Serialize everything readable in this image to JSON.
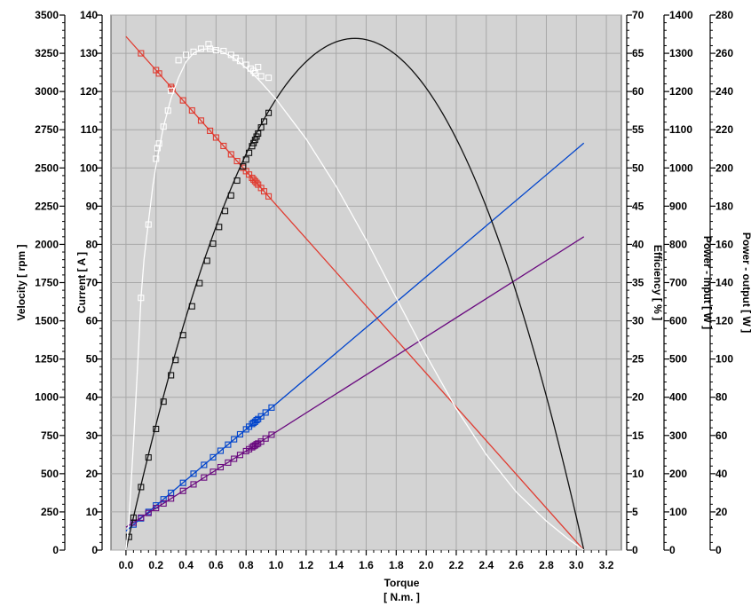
{
  "chart_data": {
    "type": "line",
    "title": "",
    "xlabel": "Torque",
    "xlabel_unit": "[ N.m. ]",
    "xlim": [
      -0.1,
      3.3
    ],
    "x_ticks": [
      "0.0",
      "0.2",
      "0.4",
      "0.6",
      "0.8",
      "1.0",
      "1.2",
      "1.4",
      "1.6",
      "1.8",
      "2.0",
      "2.2",
      "2.4",
      "2.6",
      "2.8",
      "3.0",
      "3.2"
    ],
    "grid": true,
    "plot_background": "#d3d3d3",
    "axes": [
      {
        "id": "velocity",
        "label": "Velocity [ rpm ]",
        "side": "left",
        "range": [
          0,
          3500
        ],
        "ticks": [
          "0",
          "250",
          "500",
          "750",
          "1000",
          "1250",
          "1500",
          "1750",
          "2000",
          "2250",
          "2500",
          "2750",
          "3000",
          "3250",
          "3500"
        ]
      },
      {
        "id": "current",
        "label": "Current [ A ]",
        "side": "left",
        "range": [
          0,
          140
        ],
        "ticks": [
          "0",
          "10",
          "20",
          "30",
          "40",
          "50",
          "60",
          "70",
          "80",
          "90",
          "100",
          "110",
          "120",
          "130",
          "140"
        ]
      },
      {
        "id": "efficiency",
        "label": "Efficiency [ % ]",
        "side": "right",
        "range": [
          0,
          70
        ],
        "ticks": [
          "0",
          "5",
          "10",
          "15",
          "20",
          "25",
          "30",
          "35",
          "40",
          "45",
          "50",
          "55",
          "60",
          "65",
          "70"
        ]
      },
      {
        "id": "power_input",
        "label": "Power - input [ W ]",
        "side": "right",
        "range": [
          0,
          1400
        ],
        "ticks": [
          "0",
          "100",
          "200",
          "300",
          "400",
          "500",
          "600",
          "700",
          "800",
          "900",
          "1000",
          "1100",
          "1200",
          "1300",
          "1400"
        ]
      },
      {
        "id": "power_output",
        "label": "Power - output [ W ]",
        "side": "right",
        "range": [
          0,
          280
        ],
        "ticks": [
          "0",
          "20",
          "40",
          "60",
          "80",
          "100",
          "120",
          "140",
          "160",
          "180",
          "200",
          "220",
          "240",
          "260",
          "280"
        ]
      }
    ],
    "series": [
      {
        "axis": "velocity",
        "color": "#e03c31",
        "model": "line",
        "x0": 0.0,
        "y0": 3360,
        "x1": 3.05,
        "y1": 0,
        "x": [
          0.1,
          0.2,
          0.22,
          0.3,
          0.31,
          0.38,
          0.44,
          0.5,
          0.56,
          0.6,
          0.65,
          0.7,
          0.74,
          0.78,
          0.8,
          0.82,
          0.84,
          0.85,
          0.86,
          0.87,
          0.88,
          0.9,
          0.92,
          0.95
        ],
        "y": [
          3250,
          3140,
          3118,
          3030,
          3018,
          2942,
          2876,
          2810,
          2743,
          2699,
          2644,
          2589,
          2545,
          2501,
          2479,
          2457,
          2435,
          2424,
          2413,
          2402,
          2391,
          2369,
          2347,
          2314
        ]
      },
      {
        "axis": "current",
        "color": "#0044cc",
        "model": "line",
        "x0": 0.0,
        "y0": 5.0,
        "x1": 3.05,
        "y1": 106.5,
        "x": [
          0.05,
          0.1,
          0.15,
          0.2,
          0.25,
          0.3,
          0.38,
          0.45,
          0.52,
          0.58,
          0.63,
          0.68,
          0.72,
          0.76,
          0.8,
          0.82,
          0.84,
          0.85,
          0.86,
          0.87,
          0.88,
          0.9,
          0.93,
          0.97
        ],
        "y": [
          6.7,
          8.3,
          10.0,
          11.7,
          13.3,
          15.0,
          17.6,
          20.0,
          22.3,
          24.3,
          26.0,
          27.6,
          29.0,
          30.3,
          31.6,
          32.3,
          33.0,
          33.3,
          33.6,
          34.0,
          34.3,
          35.0,
          36.0,
          37.3
        ]
      },
      {
        "axis": "power_input",
        "color": "#6a0a7f",
        "model": "line",
        "x0": 0.0,
        "y0": 60,
        "x1": 3.05,
        "y1": 820,
        "x": [
          0.05,
          0.1,
          0.15,
          0.2,
          0.25,
          0.3,
          0.38,
          0.45,
          0.52,
          0.58,
          0.63,
          0.68,
          0.72,
          0.76,
          0.8,
          0.82,
          0.84,
          0.85,
          0.86,
          0.87,
          0.88,
          0.9,
          0.93,
          0.97
        ],
        "y": [
          72,
          85,
          97,
          110,
          122,
          135,
          155,
          172,
          190,
          205,
          217,
          229,
          239,
          249,
          259,
          264,
          269,
          272,
          274,
          277,
          279,
          284,
          292,
          302
        ]
      },
      {
        "axis": "power_output",
        "color": "#111111",
        "model": "parabola",
        "zero_x": 3.05,
        "peak_y": 267.8,
        "x": [
          0.02,
          0.05,
          0.1,
          0.15,
          0.2,
          0.25,
          0.3,
          0.33,
          0.38,
          0.44,
          0.49,
          0.54,
          0.58,
          0.62,
          0.66,
          0.7,
          0.74,
          0.78,
          0.8,
          0.82,
          0.84,
          0.85,
          0.86,
          0.87,
          0.88,
          0.9,
          0.92,
          0.95
        ],
        "y": [
          6.9,
          17.0,
          33.0,
          48.5,
          63.4,
          77.7,
          91.5,
          99.5,
          112.5,
          127.6,
          139.7,
          151.4,
          160.4,
          169.1,
          177.5,
          185.6,
          193.4,
          200.8,
          204.4,
          207.9,
          211.4,
          213.0,
          214.7,
          216.4,
          218.0,
          221.2,
          224.3,
          228.8
        ]
      },
      {
        "axis": "efficiency",
        "color": "#ffffff",
        "model": "curve",
        "curve_x": [
          0.0,
          0.02,
          0.05,
          0.08,
          0.1,
          0.12,
          0.15,
          0.18,
          0.2,
          0.22,
          0.25,
          0.3,
          0.35,
          0.4,
          0.45,
          0.5,
          0.55,
          0.6,
          0.65,
          0.7,
          0.75,
          0.8,
          0.85,
          0.9,
          0.95,
          1.0,
          1.2,
          1.4,
          1.6,
          1.8,
          2.0,
          2.2,
          2.4,
          2.6,
          2.8,
          2.95,
          3.05
        ],
        "curve_y": [
          0.0,
          4.0,
          14.0,
          25.0,
          33.0,
          38.0,
          43.0,
          47.8,
          50.3,
          52.4,
          55.4,
          59.1,
          61.8,
          63.9,
          65.0,
          65.5,
          65.6,
          65.5,
          65.1,
          64.6,
          63.9,
          63.1,
          62.2,
          61.2,
          60.1,
          59.0,
          53.8,
          47.6,
          40.6,
          33.0,
          25.5,
          18.5,
          12.5,
          7.6,
          3.8,
          1.4,
          0.0
        ],
        "x": [
          0.1,
          0.15,
          0.2,
          0.21,
          0.22,
          0.25,
          0.28,
          0.3,
          0.35,
          0.4,
          0.45,
          0.5,
          0.55,
          0.56,
          0.6,
          0.65,
          0.7,
          0.73,
          0.76,
          0.8,
          0.83,
          0.85,
          0.86,
          0.88,
          0.9,
          0.95
        ],
        "y": [
          33.0,
          42.6,
          51.2,
          52.6,
          53.2,
          55.4,
          57.5,
          60.1,
          64.1,
          64.8,
          65.2,
          65.6,
          66.2,
          65.6,
          65.4,
          65.3,
          64.8,
          64.4,
          64.0,
          63.5,
          63.0,
          62.7,
          62.4,
          63.2,
          62.0,
          61.8
        ]
      }
    ]
  }
}
